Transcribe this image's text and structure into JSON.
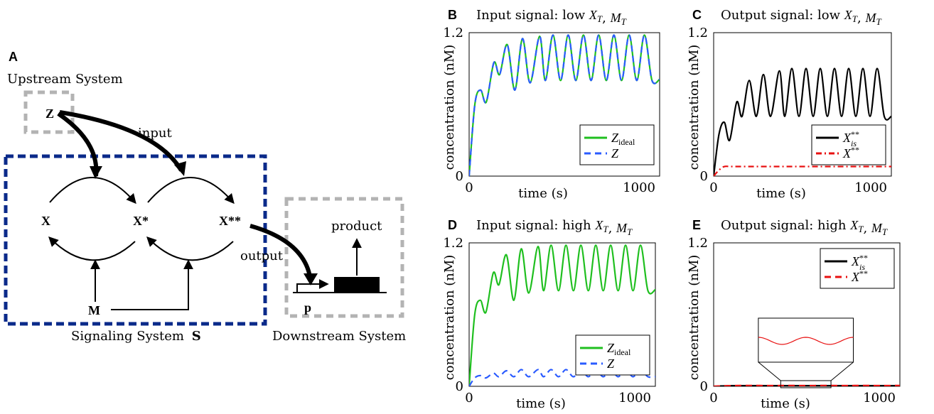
{
  "diagram": {
    "panel_label": "A",
    "upstream_label": "Upstream System",
    "signaling_label": "Signaling System",
    "signaling_symbol": "S",
    "downstream_label": "Downstream System",
    "node_z": "Z",
    "node_x": "X",
    "node_xstar": "X*",
    "node_xstarstar": "X**",
    "node_m": "M",
    "node_p": "p",
    "edge_input": "input",
    "edge_output": "output",
    "product_label": "product",
    "colors": {
      "signaling_box": "#0a2a8a",
      "upstream_box": "#b3b3b3",
      "downstream_box": "#b3b3b3"
    }
  },
  "chart_data": [
    {
      "panel": "B",
      "type": "line",
      "title": "Input signal: low X_T, M_T",
      "xlabel": "time (s)",
      "ylabel": "concentration (nM)",
      "xlim": [
        0,
        1000
      ],
      "ylim": [
        0,
        1.2
      ],
      "xticks": [
        "0",
        "1000"
      ],
      "yticks": [
        "0",
        "1.2"
      ],
      "legend_position": "lower-right",
      "series": [
        {
          "name": "Z_ideal",
          "color": "#1fbf1f",
          "dash": "solid",
          "x": [
            0,
            30,
            60,
            90,
            130,
            160,
            200,
            240,
            280,
            320,
            370,
            400,
            440,
            480,
            520,
            560,
            600,
            640,
            680,
            720,
            760,
            800,
            840,
            880,
            920,
            960,
            1000
          ],
          "y": [
            0,
            0.6,
            0.72,
            0.62,
            0.95,
            0.85,
            1.1,
            0.72,
            1.15,
            0.78,
            1.17,
            0.8,
            1.18,
            0.8,
            1.18,
            0.8,
            1.18,
            0.8,
            1.18,
            0.8,
            1.18,
            0.8,
            1.18,
            0.8,
            1.18,
            0.8,
            0.81
          ]
        },
        {
          "name": "Z",
          "color": "#2a5bff",
          "dash": "dashed",
          "x": [
            0,
            30,
            60,
            90,
            130,
            160,
            200,
            240,
            280,
            320,
            370,
            400,
            440,
            480,
            520,
            560,
            600,
            640,
            680,
            720,
            760,
            800,
            840,
            880,
            920,
            960,
            1000
          ],
          "y": [
            0,
            0.6,
            0.72,
            0.62,
            0.95,
            0.85,
            1.1,
            0.72,
            1.15,
            0.78,
            1.17,
            0.8,
            1.18,
            0.8,
            1.18,
            0.8,
            1.18,
            0.8,
            1.18,
            0.8,
            1.18,
            0.8,
            1.18,
            0.8,
            1.18,
            0.8,
            0.81
          ]
        }
      ]
    },
    {
      "panel": "C",
      "type": "line",
      "title": "Output signal: low X_T, M_T",
      "xlabel": "time (s)",
      "ylabel": "concentration (nM)",
      "xlim": [
        0,
        1000
      ],
      "ylim": [
        0,
        1.2
      ],
      "xticks": [
        "0",
        "1000"
      ],
      "yticks": [
        "0",
        "1.2"
      ],
      "legend_position": "lower-right",
      "series": [
        {
          "name": "X_is**",
          "color": "#000000",
          "dash": "solid",
          "x": [
            0,
            30,
            60,
            90,
            130,
            160,
            200,
            240,
            280,
            320,
            370,
            400,
            440,
            480,
            520,
            560,
            600,
            640,
            680,
            720,
            760,
            800,
            840,
            880,
            920,
            960,
            1000
          ],
          "y": [
            0,
            0.35,
            0.45,
            0.3,
            0.62,
            0.5,
            0.8,
            0.5,
            0.85,
            0.5,
            0.88,
            0.5,
            0.9,
            0.5,
            0.9,
            0.5,
            0.9,
            0.5,
            0.9,
            0.5,
            0.9,
            0.5,
            0.9,
            0.5,
            0.9,
            0.5,
            0.5
          ]
        },
        {
          "name": "X**",
          "color": "#e81010",
          "dash": "dashdot",
          "x": [
            0,
            30,
            60,
            100,
            200,
            300,
            400,
            500,
            600,
            700,
            800,
            900,
            1000
          ],
          "y": [
            0,
            0.05,
            0.08,
            0.08,
            0.08,
            0.08,
            0.08,
            0.08,
            0.08,
            0.08,
            0.08,
            0.08,
            0.08
          ]
        }
      ]
    },
    {
      "panel": "D",
      "type": "line",
      "title": "Input signal: high X_T, M_T",
      "xlabel": "time (s)",
      "ylabel": "concentration (nM)",
      "xlim": [
        0,
        1000
      ],
      "ylim": [
        0,
        1.2
      ],
      "xticks": [
        "0",
        "1000"
      ],
      "yticks": [
        "0",
        "1.2"
      ],
      "legend_position": "lower-right",
      "series": [
        {
          "name": "Z_ideal",
          "color": "#1fbf1f",
          "dash": "solid",
          "x": [
            0,
            30,
            60,
            90,
            130,
            160,
            200,
            240,
            280,
            320,
            370,
            400,
            440,
            480,
            520,
            560,
            600,
            640,
            680,
            720,
            760,
            800,
            840,
            880,
            920,
            960,
            1000
          ],
          "y": [
            0,
            0.6,
            0.72,
            0.62,
            0.95,
            0.85,
            1.1,
            0.72,
            1.15,
            0.78,
            1.17,
            0.8,
            1.18,
            0.8,
            1.18,
            0.8,
            1.18,
            0.8,
            1.18,
            0.8,
            1.18,
            0.8,
            1.18,
            0.8,
            1.18,
            0.8,
            0.81
          ]
        },
        {
          "name": "Z",
          "color": "#2a5bff",
          "dash": "dashed",
          "x": [
            0,
            30,
            60,
            90,
            130,
            160,
            200,
            240,
            280,
            320,
            370,
            400,
            440,
            480,
            520,
            560,
            600,
            640,
            680,
            720,
            760,
            800,
            840,
            880,
            920,
            960,
            1000
          ],
          "y": [
            0,
            0.07,
            0.09,
            0.07,
            0.11,
            0.08,
            0.13,
            0.08,
            0.14,
            0.08,
            0.14,
            0.08,
            0.14,
            0.08,
            0.14,
            0.08,
            0.14,
            0.08,
            0.14,
            0.08,
            0.14,
            0.08,
            0.14,
            0.08,
            0.14,
            0.08,
            0.08
          ]
        }
      ]
    },
    {
      "panel": "E",
      "type": "line",
      "title": "Output signal: high X_T, M_T",
      "xlabel": "time (s)",
      "ylabel": "concentration (nM)",
      "xlim": [
        0,
        1000
      ],
      "ylim": [
        0,
        1.2
      ],
      "xticks": [
        "0",
        "1000"
      ],
      "yticks": [
        "0",
        "1.2"
      ],
      "legend_position": "upper-right",
      "series": [
        {
          "name": "X_is**",
          "color": "#000000",
          "dash": "solid",
          "x": [
            0,
            100,
            200,
            300,
            400,
            500,
            600,
            700,
            800,
            900,
            1000
          ],
          "y": [
            0,
            0.005,
            0.005,
            0.005,
            0.005,
            0.005,
            0.005,
            0.005,
            0.005,
            0.005,
            0.005
          ]
        },
        {
          "name": "X**",
          "color": "#e81010",
          "dash": "dashed",
          "x": [
            0,
            100,
            200,
            300,
            400,
            500,
            600,
            700,
            800,
            900,
            1000
          ],
          "y": [
            0,
            0.006,
            0.007,
            0.006,
            0.007,
            0.006,
            0.007,
            0.006,
            0.007,
            0.006,
            0.007
          ]
        }
      ]
    }
  ]
}
